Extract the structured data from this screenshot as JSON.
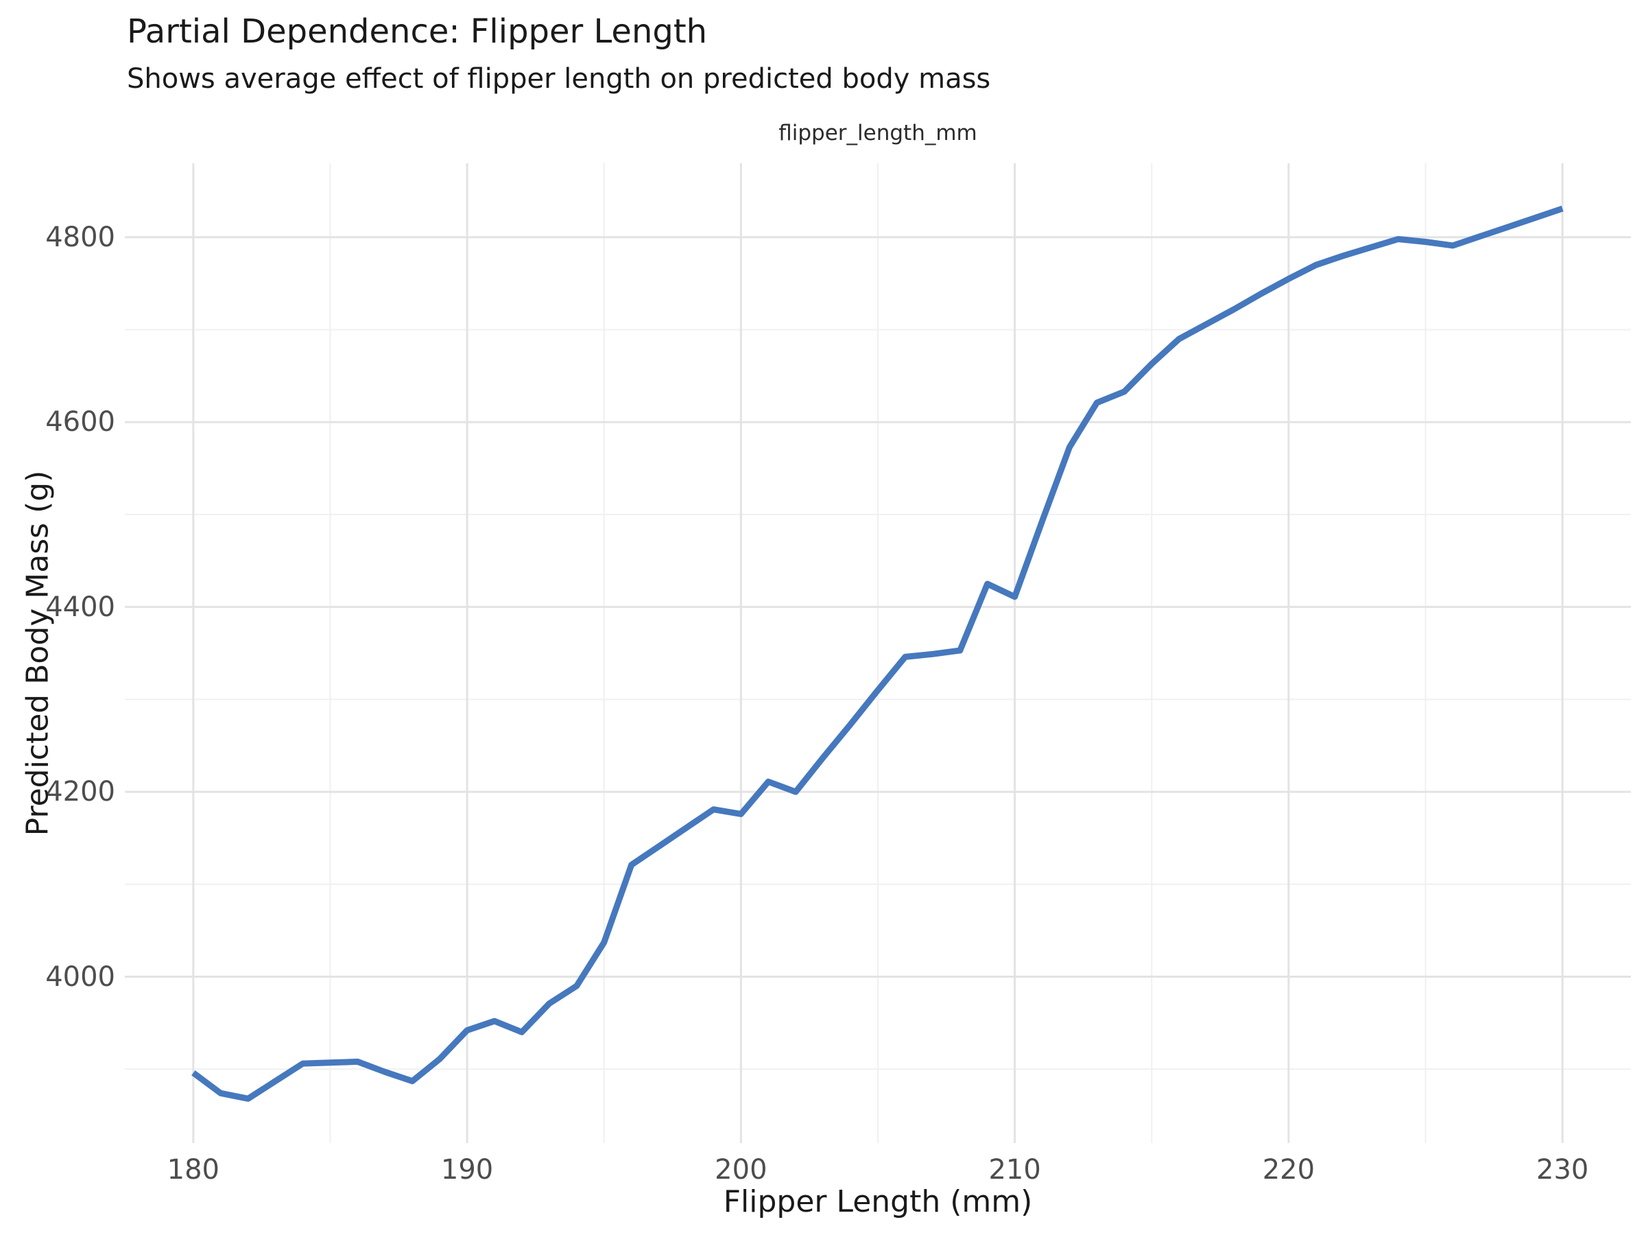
{
  "title": "Partial Dependence: Flipper Length",
  "subtitle": "Shows average effect of flipper length on predicted body mass",
  "facet_label": "flipper_length_mm",
  "colors": {
    "line": "#4678BE",
    "grid_major": "#e3e3e3",
    "grid_minor": "#f0f0f0",
    "tick_label_text": "#4d4d4d",
    "title_text": "#1a1a1a",
    "background": "#ffffff"
  },
  "chart_data": {
    "type": "line",
    "title": "Partial Dependence: Flipper Length",
    "subtitle": "Shows average effect of flipper length on predicted body mass",
    "facet_label": "flipper_length_mm",
    "xlabel": "Flipper Length (mm)",
    "ylabel": "Predicted Body Mass (g)",
    "legend": "none",
    "grid": true,
    "xlim": [
      177.5,
      232.5
    ],
    "ylim": [
      3820,
      4880
    ],
    "xticks": [
      180,
      190,
      200,
      210,
      220,
      230
    ],
    "yticks": [
      4000,
      4200,
      4400,
      4600,
      4800
    ],
    "xticks_minor": [
      185,
      195,
      205,
      215,
      225
    ],
    "yticks_minor": [
      3900,
      4100,
      4300,
      4500,
      4700
    ],
    "series": [
      {
        "name": "average_prediction",
        "x": [
          180,
          181,
          182,
          183,
          184,
          185,
          186,
          187,
          188,
          189,
          190,
          191,
          192,
          193,
          194,
          195,
          196,
          197,
          198,
          199,
          200,
          201,
          202,
          203,
          204,
          205,
          206,
          207,
          208,
          209,
          210,
          211,
          212,
          213,
          214,
          215,
          216,
          217,
          218,
          219,
          220,
          221,
          222,
          223,
          224,
          225,
          226,
          227,
          228,
          229,
          230
        ],
        "y": [
          3896,
          3874,
          3868,
          3887,
          3906,
          3907,
          3908,
          3897,
          3887,
          3911,
          3942,
          3952,
          3940,
          3971,
          3990,
          4037,
          4121,
          4141,
          4161,
          4181,
          4176,
          4211,
          4200,
          4237,
          4273,
          4310,
          4346,
          4349,
          4353,
          4425,
          4411,
          4493,
          4573,
          4621,
          4633,
          4663,
          4690,
          4706,
          4722,
          4739,
          4755,
          4770,
          4780,
          4789,
          4798,
          4795,
          4791,
          4801,
          4811,
          4821,
          4831
        ]
      }
    ]
  }
}
